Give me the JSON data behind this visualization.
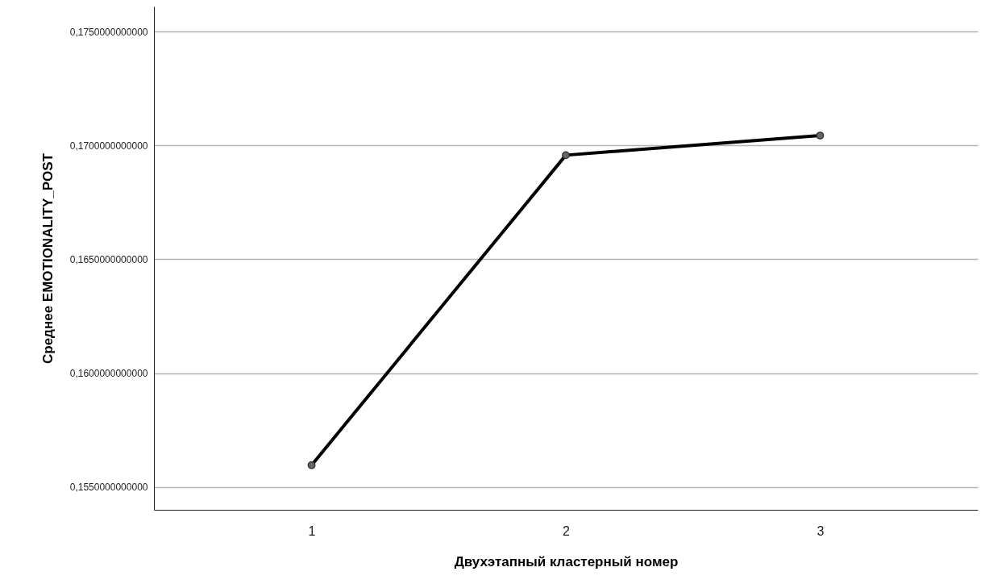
{
  "chart_data": {
    "type": "line",
    "xlabel": "Двухэтапный кластерный номер",
    "ylabel": "Среднее EMOTIONALITY_POST",
    "categories": [
      "1",
      "2",
      "3"
    ],
    "series": [
      {
        "color": "#000000",
        "values": [
          0.15596,
          0.16957,
          0.17043
        ]
      }
    ],
    "ylim": [
      0.154,
      0.1761
    ],
    "yticks": [
      {
        "value": 0.155,
        "label": "0,1550000000000"
      },
      {
        "value": 0.16,
        "label": "0,1600000000000"
      },
      {
        "value": 0.165,
        "label": "0,1650000000000"
      },
      {
        "value": 0.17,
        "label": "0,1700000000000"
      },
      {
        "value": 0.175,
        "label": "0,1750000000000"
      }
    ],
    "grid": "y",
    "marker": "circle",
    "line_style": "solid"
  }
}
